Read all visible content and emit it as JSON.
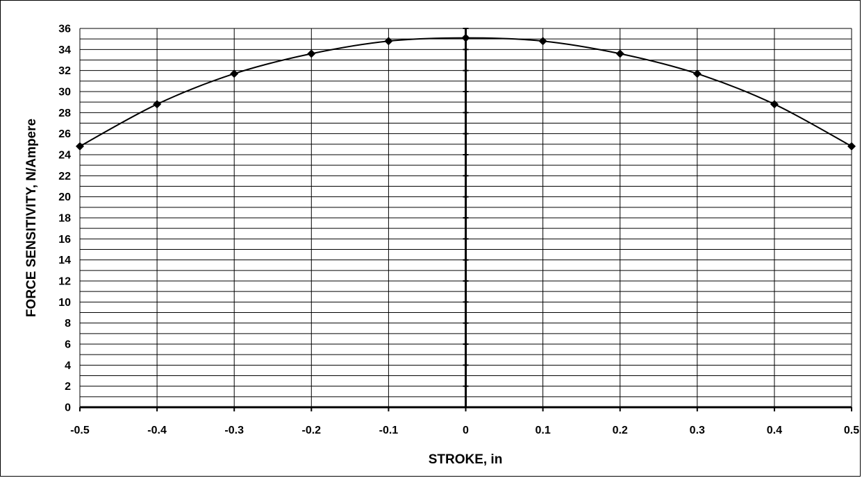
{
  "chart_data": {
    "type": "line",
    "title": "",
    "xlabel": "STROKE, in",
    "ylabel": "FORCE SENSITIVITY, N/Ampere",
    "xlim": [
      -0.5,
      0.5
    ],
    "ylim": [
      0,
      36
    ],
    "x_ticks": [
      "-0.5",
      "-0.4",
      "-0.3",
      "-0.2",
      "-0.1",
      "0",
      "0.1",
      "0.2",
      "0.3",
      "0.4",
      "0.5"
    ],
    "y_ticks": [
      "0",
      "2",
      "4",
      "6",
      "8",
      "10",
      "12",
      "14",
      "16",
      "18",
      "20",
      "22",
      "24",
      "26",
      "28",
      "30",
      "32",
      "34",
      "36"
    ],
    "x_tick_step": 0.1,
    "y_major_step": 2,
    "y_minor_step": 1,
    "grid": true,
    "legend": "none",
    "series": [
      {
        "marker": "diamond",
        "color": "#000000",
        "x": [
          -0.5,
          -0.4,
          -0.3,
          -0.2,
          -0.1,
          0,
          0.1,
          0.2,
          0.3,
          0.4,
          0.5
        ],
        "y": [
          24.8,
          28.8,
          31.7,
          33.6,
          34.8,
          35.1,
          34.8,
          33.6,
          31.7,
          28.8,
          24.8
        ]
      }
    ]
  }
}
